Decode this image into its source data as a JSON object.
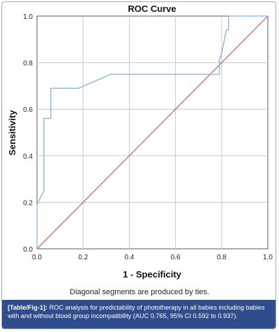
{
  "chart_data": {
    "type": "line",
    "title": "ROC Curve",
    "xlabel": "1 - Specificity",
    "ylabel": "Sensitivity",
    "xlim": [
      0,
      1
    ],
    "ylim": [
      0,
      1
    ],
    "xticks": [
      "0.0",
      "0.2",
      "0.4",
      "0.6",
      "0.8",
      "1.0"
    ],
    "yticks": [
      "0.0",
      "0.2",
      "0.4",
      "0.6",
      "0.8",
      "1.0"
    ],
    "grid": true,
    "series": [
      {
        "color": "#7fb2e5",
        "x": [
          0.0,
          0.0,
          0.0,
          0.03,
          0.03,
          0.03,
          0.06,
          0.06,
          0.06,
          0.18,
          0.32,
          0.79,
          0.79,
          0.8,
          0.82,
          0.82,
          0.83,
          0.83,
          1.0
        ],
        "y": [
          0.0,
          0.06,
          0.19,
          0.25,
          0.44,
          0.56,
          0.56,
          0.62,
          0.69,
          0.69,
          0.75,
          0.75,
          0.81,
          0.84,
          0.94,
          0.94,
          0.94,
          1.0,
          1.0
        ]
      },
      {
        "color": "#d9607a",
        "x": [
          0,
          1
        ],
        "y": [
          0,
          1
        ]
      }
    ]
  },
  "note": "Diagonal segments are produced by ties.",
  "caption": {
    "label": "[Table/Fig-1]:",
    "text": "ROC analysis for predictability of phototherapy in all babies including babies with and without blood group incompatibility (AUC 0.765, 95% CI 0.592 to 0.937)."
  }
}
